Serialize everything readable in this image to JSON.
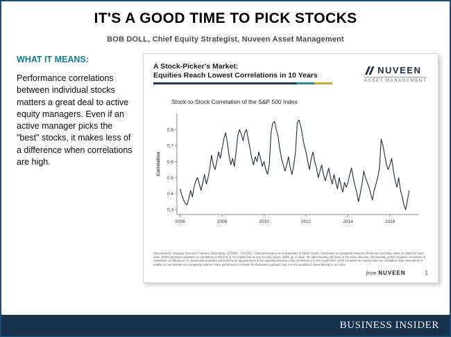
{
  "page": {
    "title": "IT'S A GOOD TIME TO PICK STOCKS",
    "byline": "BOB DOLL, Chief Equity Strategist, Nuveen Asset Management"
  },
  "sidebar": {
    "heading": "WHAT IT MEANS:",
    "body": "Performance correlations between individual stocks matters a great deal to active equity managers. Even if an active manager picks the \"best\" stocks, it makes less of a difference when correlations are high."
  },
  "slide": {
    "title_line1": "A Stock-Picker's Market:",
    "title_line2": "Equities Reach Lowest Correlations in 10 Years",
    "logo": {
      "name": "NUVEEN",
      "subtext": "ASSET MANAGEMENT"
    },
    "disclaimer": "Data sourced: Strategas Research Partners, Bloomberg, 12/29/06 - 3/31/2017. Past performance is no guarantee of future results. Correlation is a statistical measure of how two securities move in relation to each other. Perfect positive correlation (a correlation co-efficient of +1) implies that as one security moves, either up or down, the other security will move in the same direction. Alternatively, perfect negative correlation (a correlation co-efficient of -1) means that securities will move by an equal amount in the opposite direction. If the correlation is 0, the movements of the securities are said to have no correlation; their movements in relation to one another are completely random. Index performance is shown for illustrative purposes only. It is not possible to invest directly in an index.",
    "footer_from": "from",
    "footer_brand": "NUVEEN",
    "page_number": "1"
  },
  "footer": {
    "brand": "BUSINESS INSIDER"
  },
  "colors": {
    "frame_border": "#1b4a73",
    "footer_bar": "#15314b",
    "accent_teal": "#0e7d90",
    "brand_navy": "#1b2e4a",
    "chart_line": "#1c2b3a",
    "underline_navy": "#1b3a5c",
    "underline_teal": "#2a8a9d",
    "underline_gold": "#d1a53a"
  },
  "chart_data": {
    "type": "line",
    "title": "Stock-to-Stock Correlation of the S&P 500 Index",
    "xlabel": "",
    "ylabel": "Correlation",
    "legend": [],
    "grid": false,
    "x_start": 2006.0,
    "x_step": 0.0833,
    "xlim": [
      2005.85,
      2017.35
    ],
    "ylim": [
      0.27,
      0.9
    ],
    "xticks": [
      2006,
      2008,
      2010,
      2012,
      2014,
      2016
    ],
    "yticks": [
      0.3,
      0.4,
      0.5,
      0.6,
      0.7,
      0.8
    ],
    "line_color": "#1c2b3a",
    "values": [
      0.43,
      0.39,
      0.36,
      0.34,
      0.33,
      0.37,
      0.42,
      0.38,
      0.44,
      0.48,
      0.5,
      0.46,
      0.42,
      0.47,
      0.52,
      0.46,
      0.5,
      0.56,
      0.64,
      0.58,
      0.55,
      0.6,
      0.66,
      0.62,
      0.68,
      0.74,
      0.78,
      0.72,
      0.64,
      0.58,
      0.62,
      0.57,
      0.66,
      0.76,
      0.8,
      0.77,
      0.73,
      0.78,
      0.8,
      0.74,
      0.68,
      0.62,
      0.58,
      0.63,
      0.6,
      0.66,
      0.62,
      0.57,
      0.6,
      0.55,
      0.52,
      0.58,
      0.78,
      0.84,
      0.85,
      0.8,
      0.76,
      0.68,
      0.62,
      0.58,
      0.54,
      0.58,
      0.63,
      0.56,
      0.52,
      0.58,
      0.66,
      0.84,
      0.86,
      0.82,
      0.76,
      0.7,
      0.66,
      0.6,
      0.55,
      0.62,
      0.66,
      0.6,
      0.56,
      0.5,
      0.54,
      0.58,
      0.52,
      0.48,
      0.52,
      0.56,
      0.5,
      0.46,
      0.52,
      0.47,
      0.43,
      0.5,
      0.45,
      0.41,
      0.47,
      0.44,
      0.47,
      0.52,
      0.56,
      0.5,
      0.45,
      0.41,
      0.35,
      0.4,
      0.46,
      0.54,
      0.5,
      0.47,
      0.44,
      0.4,
      0.36,
      0.42,
      0.46,
      0.5,
      0.56,
      0.74,
      0.7,
      0.64,
      0.58,
      0.55,
      0.58,
      0.62,
      0.54,
      0.48,
      0.44,
      0.5,
      0.42,
      0.38,
      0.33,
      0.3,
      0.36,
      0.42
    ]
  }
}
